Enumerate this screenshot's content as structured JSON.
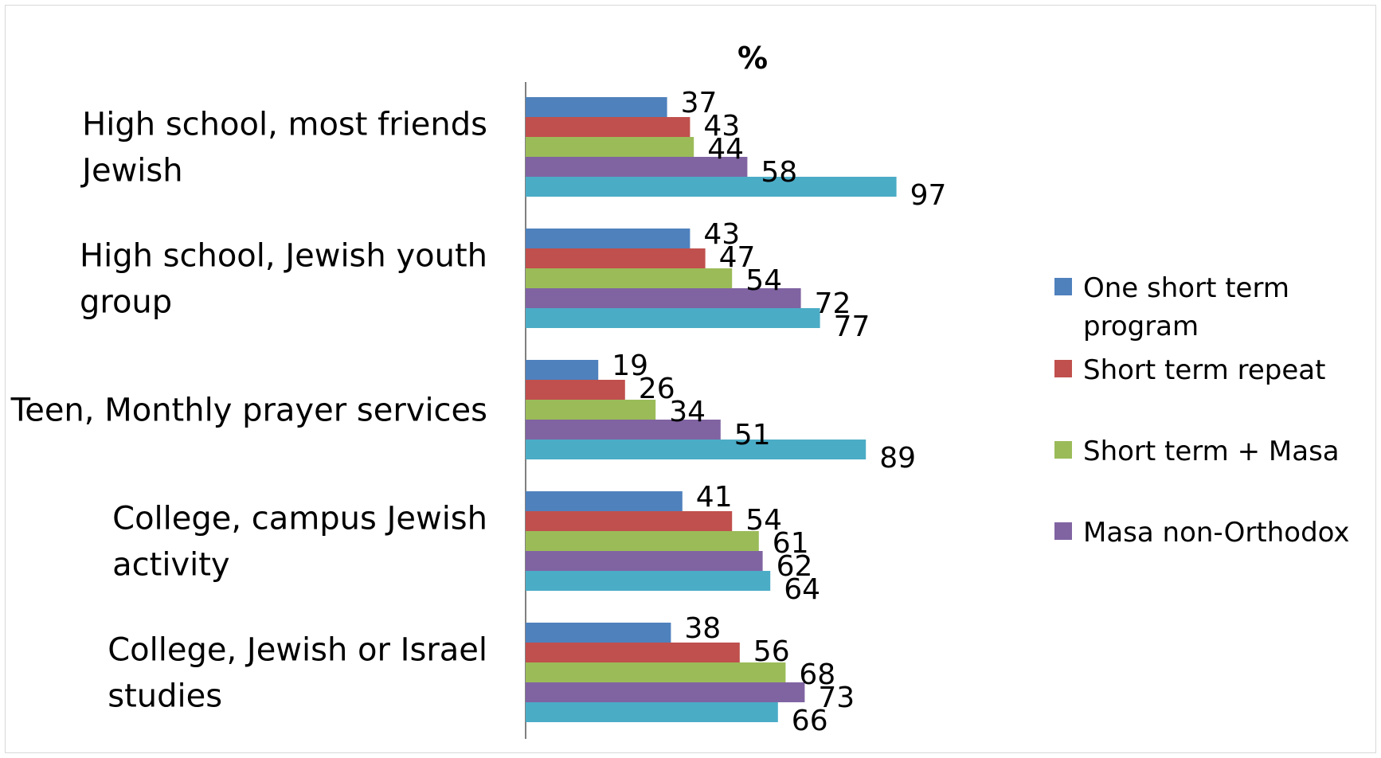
{
  "chart_data": {
    "type": "bar",
    "orientation": "horizontal",
    "title": "%",
    "categories": [
      [
        "High school, most friends",
        "Jewish"
      ],
      [
        "High school, Jewish youth",
        "group"
      ],
      [
        "Teen, Monthly prayer services"
      ],
      [
        "College, campus Jewish",
        "activity"
      ],
      [
        "College, Jewish or Israel",
        "studies"
      ]
    ],
    "series": [
      {
        "name": "One short term program",
        "legend_lines": [
          "One short term",
          "program"
        ],
        "color": "#4F81BD",
        "values": [
          37,
          43,
          19,
          41,
          38
        ]
      },
      {
        "name": "Short term repeat",
        "legend_lines": [
          "Short term repeat"
        ],
        "color": "#C0504D",
        "values": [
          43,
          47,
          26,
          54,
          56
        ]
      },
      {
        "name": "Short term + Masa",
        "legend_lines": [
          "Short term + Masa"
        ],
        "color": "#9BBB59",
        "values": [
          44,
          54,
          34,
          61,
          68
        ]
      },
      {
        "name": "Masa non-Orthodox",
        "legend_lines": [
          "Masa non-Orthodox"
        ],
        "color": "#8064A2",
        "values": [
          58,
          72,
          51,
          62,
          73
        ]
      },
      {
        "name": "",
        "legend_lines": [],
        "color": "#4BACC6",
        "values": [
          97,
          77,
          89,
          64,
          66
        ]
      }
    ],
    "xlim": [
      0,
      100
    ],
    "grid": false,
    "legend_position": "right"
  }
}
